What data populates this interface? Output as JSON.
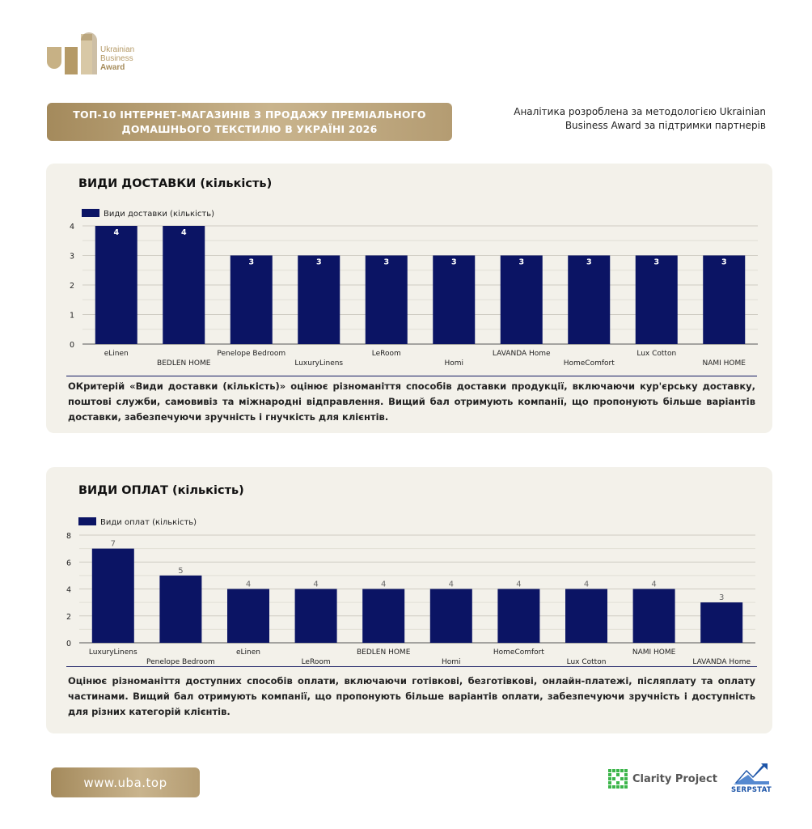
{
  "brand": {
    "logo_lines": [
      "Ukrainian",
      "Business",
      "Award"
    ]
  },
  "header": {
    "title_line1": "ТОП-10 ІНТЕРНЕТ-МАГАЗИНІВ З ПРОДАЖУ ПРЕМІАЛЬНОГО",
    "title_line2": "ДОМАШНЬОГО ТЕКСТИЛЮ В УКРАЇНІ 2026",
    "note_line1": "Аналітика розроблена за методологією Ukrainian",
    "note_line2": "Business Award за підтримки партнерів"
  },
  "colors": {
    "bar": "#0b1464",
    "gold": "#b59a67",
    "card_bg": "#f3f1ea"
  },
  "chart_data": [
    {
      "type": "bar",
      "title": "ВИДИ ДОСТАВКИ (кількість)",
      "legend": "Види доставки (кількість)",
      "categories": [
        "eLinen",
        "BEDLEN HOME",
        "Penelope Bedroom",
        "LuxuryLinens",
        "LeRoom",
        "Homi",
        "LAVANDA Home",
        "HomeComfort",
        "Lux Cotton",
        "NAMI HOME"
      ],
      "values": [
        4,
        4,
        3,
        3,
        3,
        3,
        3,
        3,
        3,
        3
      ],
      "yticks": [
        "0",
        "1",
        "2",
        "3",
        "4"
      ],
      "ylim": [
        0,
        4
      ],
      "grid": true,
      "label_position": "inside-top"
    },
    {
      "type": "bar",
      "title": "ВИДИ ОПЛАТ (кількість)",
      "legend": "Види оплат (кількість)",
      "categories": [
        "LuxuryLinens",
        "Penelope Bedroom",
        "eLinen",
        "LeRoom",
        "BEDLEN HOME",
        "Homi",
        "HomeComfort",
        "Lux Cotton",
        "NAMI HOME",
        "LAVANDA Home"
      ],
      "values": [
        7,
        5,
        4,
        4,
        4,
        4,
        4,
        4,
        4,
        3
      ],
      "yticks": [
        "0",
        "2",
        "4",
        "6",
        "8"
      ],
      "ylim": [
        0,
        8
      ],
      "grid": true,
      "label_position": "above"
    }
  ],
  "descriptions": {
    "delivery": "ОКритерій «Види доставки (кількість)» оцінює різноманіття способів доставки продукції, включаючи кур'єрську доставку, поштові служби, самовивіз та міжнародні відправлення. Вищий бал отримують компанії, що пропонують більше варіантів доставки, забезпечуючи зручність і гнучкість для клієнтів.",
    "payment": "Оцінює різноманіття доступних способів оплати, включаючи готівкові, безготівкові, онлайн-платежі, післяплату та оплату частинами. Вищий бал отримують компанії, що пропонують більше варіантів оплати, забезпечуючи зручність і доступність для різних категорій клієнтів."
  },
  "footer": {
    "website": "www.uba.top",
    "partner1": "Clarity Project",
    "partner2": "SERPSTAT"
  }
}
